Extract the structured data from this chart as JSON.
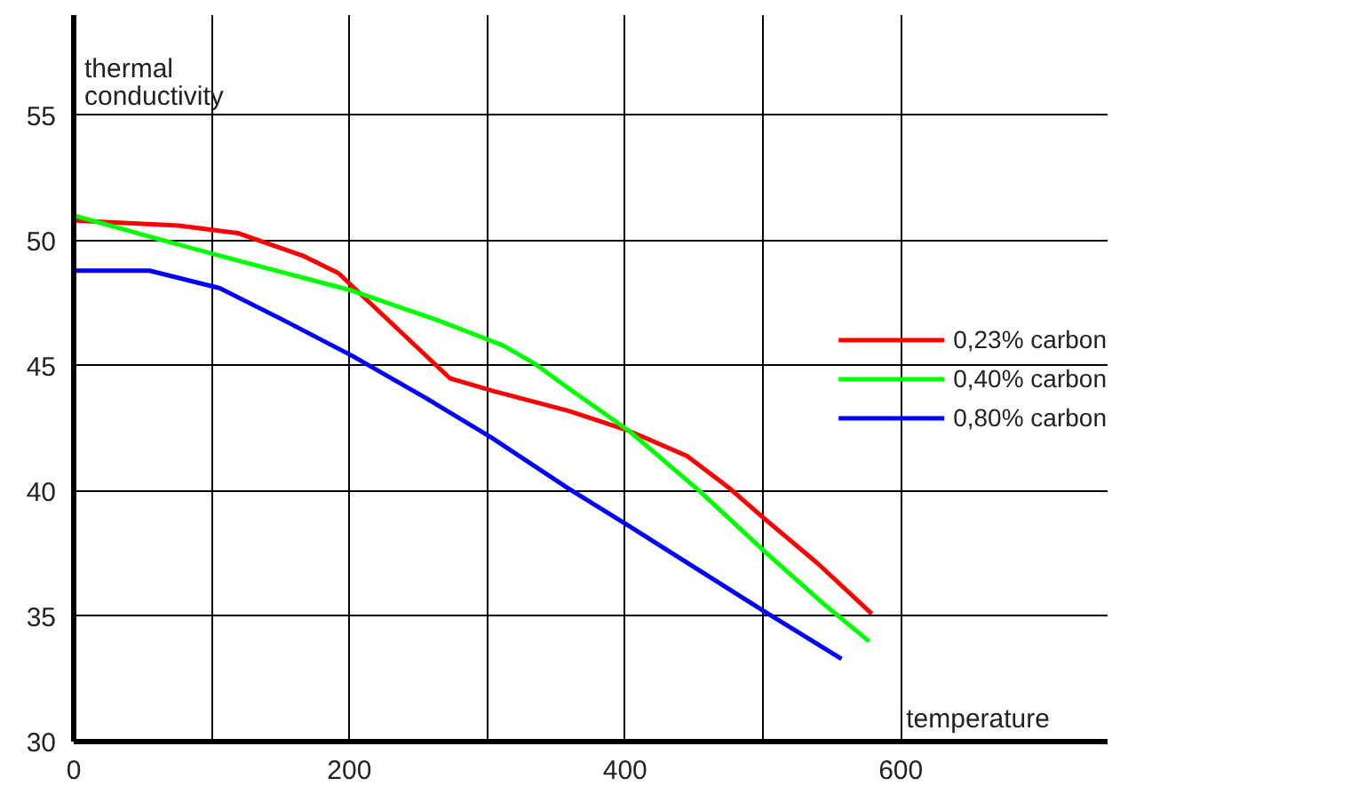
{
  "chart_data": {
    "type": "line",
    "xlabel": "temperature",
    "ylabel": "thermal conductivity",
    "xlim": [
      0,
      750
    ],
    "ylim": [
      30,
      59
    ],
    "xticks": [
      0,
      {
        "value": 100,
        "label": null
      },
      200,
      {
        "value": 300,
        "label": null
      },
      400,
      {
        "value": 500,
        "label": null
      },
      600
    ],
    "yticks": [
      30,
      35,
      40,
      45,
      50,
      55
    ],
    "grid": true,
    "legend": "right",
    "marker": "none",
    "line_style": "solid",
    "series": [
      {
        "name": "0,23% carbon",
        "color": "#ff0000",
        "x": [
          0,
          76,
          119,
          166,
          192,
          273,
          304,
          359,
          403,
          445,
          476,
          501,
          540,
          579
        ],
        "values": [
          50.8,
          50.6,
          50.3,
          49.4,
          48.7,
          44.5,
          44.0,
          43.2,
          42.4,
          41.4,
          40.1,
          38.9,
          37.1,
          35.1
        ]
      },
      {
        "name": "0,40% carbon",
        "color": "#00ff00",
        "x": [
          0,
          59,
          119,
          202,
          265,
          312,
          334,
          359,
          403,
          454,
          501,
          544,
          577
        ],
        "values": [
          51.0,
          50.1,
          49.2,
          48.0,
          46.8,
          45.8,
          45.1,
          44.1,
          42.4,
          40.0,
          37.6,
          35.5,
          34.0
        ]
      },
      {
        "name": "0,80% carbon",
        "color": "#0000ff",
        "x": [
          0,
          55,
          106,
          153,
          202,
          256,
          304,
          359,
          403,
          501,
          557
        ],
        "values": [
          48.8,
          48.8,
          48.1,
          46.8,
          45.4,
          43.7,
          42.1,
          40.1,
          38.6,
          35.2,
          33.3
        ]
      }
    ]
  }
}
